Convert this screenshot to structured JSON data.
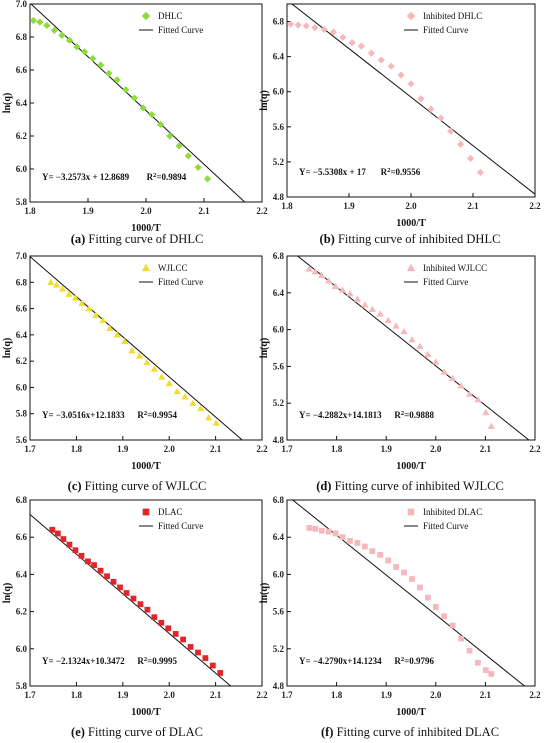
{
  "chart_data": [
    {
      "type": "scatter",
      "caption_letter": "(a)",
      "caption_text": "Fitting curve of DHLC",
      "xlabel": "1000/T",
      "ylabel": "ln(q)",
      "xlim": [
        1.8,
        2.2
      ],
      "ylim": [
        5.8,
        7.0
      ],
      "xticks": [
        "1.8",
        "1.9",
        "2.0",
        "2.1",
        "2.2"
      ],
      "yticks": [
        "5.8",
        "6.0",
        "6.2",
        "6.4",
        "6.6",
        "6.8",
        "7.0"
      ],
      "marker": "diamond",
      "color": "#8ddc3c",
      "legend_position": "top-right",
      "series": [
        {
          "name": "DHLC",
          "x": [
            1.806,
            1.817,
            1.829,
            1.842,
            1.855,
            1.868,
            1.881,
            1.894,
            1.908,
            1.922,
            1.936,
            1.95,
            1.965,
            1.98,
            1.995,
            2.01,
            2.025,
            2.041,
            2.057,
            2.073,
            2.09,
            2.106
          ],
          "y": [
            6.9,
            6.89,
            6.87,
            6.84,
            6.81,
            6.78,
            6.74,
            6.71,
            6.67,
            6.63,
            6.58,
            6.54,
            6.48,
            6.43,
            6.37,
            6.33,
            6.27,
            6.2,
            6.14,
            6.08,
            6.01,
            5.94
          ]
        },
        {
          "name": "Fitted Curve",
          "line": true,
          "slope": -3.2573,
          "intercept": 12.8689
        }
      ],
      "equation": "Y= −3.2573x + 12.8689",
      "r2_value": "=0.9894"
    },
    {
      "type": "scatter",
      "caption_letter": "(b)",
      "caption_text": "Fitting curve of inhibited DHLC",
      "xlabel": "1000/T",
      "ylabel": "ln(q)",
      "xlim": [
        1.8,
        2.2
      ],
      "ylim": [
        4.8,
        7.0
      ],
      "xticks": [
        "1.8",
        "1.9",
        "2.0",
        "2.1",
        "2.2"
      ],
      "yticks": [
        "4.8",
        "5.2",
        "5.6",
        "6.0",
        "6.4",
        "6.8"
      ],
      "marker": "diamond",
      "color": "#f6b8bb",
      "legend_position": "top-right",
      "series": [
        {
          "name": "Inhibited DHLC",
          "x": [
            1.806,
            1.818,
            1.831,
            1.845,
            1.86,
            1.875,
            1.89,
            1.905,
            1.92,
            1.936,
            1.952,
            1.968,
            1.984,
            2.0,
            2.016,
            2.032,
            2.048,
            2.064,
            2.08,
            2.096,
            2.112
          ],
          "y": [
            6.77,
            6.76,
            6.75,
            6.73,
            6.71,
            6.68,
            6.62,
            6.56,
            6.52,
            6.44,
            6.36,
            6.29,
            6.19,
            6.09,
            5.92,
            5.8,
            5.7,
            5.55,
            5.4,
            5.24,
            5.08
          ]
        },
        {
          "name": "Fitted Curve",
          "line": true,
          "slope": -5.5308,
          "intercept": 17.0
        }
      ],
      "equation": "Y= −5.5308x + 17",
      "r2_value": "=0.9556"
    },
    {
      "type": "scatter",
      "caption_letter": "(c)",
      "caption_text": "Fitting curve of WJLCC",
      "xlabel": "1000/T",
      "ylabel": "ln(q)",
      "xlim": [
        1.7,
        2.2
      ],
      "ylim": [
        5.6,
        7.0
      ],
      "xticks": [
        "1.7",
        "1.8",
        "1.9",
        "2.0",
        "2.1",
        "2.2"
      ],
      "yticks": [
        "5.6",
        "5.8",
        "6.0",
        "6.2",
        "6.4",
        "6.6",
        "6.8",
        "7.0"
      ],
      "marker": "triangle",
      "color": "#f2dc31",
      "legend_position": "top-right",
      "series": [
        {
          "name": "WJLCC",
          "x": [
            1.745,
            1.757,
            1.77,
            1.784,
            1.798,
            1.812,
            1.827,
            1.842,
            1.857,
            1.872,
            1.888,
            1.904,
            1.92,
            1.936,
            1.952,
            1.968,
            1.984,
            2.0,
            2.017,
            2.034,
            2.051,
            2.068,
            2.085,
            2.101
          ],
          "y": [
            6.8,
            6.78,
            6.75,
            6.71,
            6.68,
            6.64,
            6.6,
            6.55,
            6.51,
            6.45,
            6.4,
            6.35,
            6.28,
            6.24,
            6.19,
            6.14,
            6.08,
            6.03,
            5.97,
            5.93,
            5.88,
            5.84,
            5.77,
            5.73
          ]
        },
        {
          "name": "Fitted Curve",
          "line": true,
          "slope": -3.0516,
          "intercept": 12.1833
        }
      ],
      "equation": "Y= −3.0516x+12.1833",
      "r2_value": "=0.9954"
    },
    {
      "type": "scatter",
      "caption_letter": "(d)",
      "caption_text": "Fitting curve of inhibited WJLCC",
      "xlabel": "1000/T",
      "ylabel": "ln(q)",
      "xlim": [
        1.7,
        2.2
      ],
      "ylim": [
        4.8,
        6.8
      ],
      "xticks": [
        "1.7",
        "1.8",
        "1.9",
        "2.0",
        "2.1",
        "2.2"
      ],
      "yticks": [
        "4.8",
        "5.2",
        "5.6",
        "6.0",
        "6.4",
        "6.8"
      ],
      "marker": "triangle",
      "color": "#f6b8bb",
      "legend_position": "top-right",
      "series": [
        {
          "name": "Inhibited WJLCC",
          "x": [
            1.745,
            1.757,
            1.77,
            1.784,
            1.798,
            1.812,
            1.827,
            1.842,
            1.857,
            1.872,
            1.888,
            1.904,
            1.92,
            1.936,
            1.952,
            1.968,
            1.984,
            2.0,
            2.017,
            2.034,
            2.051,
            2.068,
            2.085,
            2.101,
            2.112
          ],
          "y": [
            6.66,
            6.63,
            6.59,
            6.53,
            6.47,
            6.43,
            6.39,
            6.33,
            6.27,
            6.22,
            6.17,
            6.1,
            6.04,
            5.98,
            5.89,
            5.82,
            5.73,
            5.65,
            5.54,
            5.47,
            5.39,
            5.3,
            5.24,
            5.1,
            4.95
          ]
        },
        {
          "name": "Fitted Curve",
          "line": true,
          "slope": -4.2882,
          "intercept": 14.1813
        }
      ],
      "equation": "Y= −4.2882x+14.1813",
      "r2_value": "=0.9888"
    },
    {
      "type": "scatter",
      "caption_letter": "(e)",
      "caption_text": "Fitting curve of DLAC",
      "xlabel": "1000/T",
      "ylabel": "ln(q)",
      "xlim": [
        1.7,
        2.2
      ],
      "ylim": [
        5.8,
        6.8
      ],
      "xticks": [
        "1.7",
        "1.8",
        "1.9",
        "2.0",
        "2.1",
        "2.2"
      ],
      "yticks": [
        "5.8",
        "6.0",
        "6.2",
        "6.4",
        "6.6",
        "6.8"
      ],
      "marker": "square",
      "color": "#e0262a",
      "legend_position": "top-right",
      "series": [
        {
          "name": "DLAC",
          "x": [
            1.748,
            1.76,
            1.772,
            1.785,
            1.798,
            1.811,
            1.825,
            1.838,
            1.852,
            1.866,
            1.88,
            1.894,
            1.908,
            1.923,
            1.938,
            1.953,
            1.968,
            1.983,
            1.998,
            2.014,
            2.03,
            2.046,
            2.062,
            2.078,
            2.094,
            2.11
          ],
          "y": [
            6.64,
            6.62,
            6.59,
            6.56,
            6.53,
            6.5,
            6.47,
            6.45,
            6.42,
            6.39,
            6.36,
            6.33,
            6.3,
            6.27,
            6.24,
            6.21,
            6.17,
            6.14,
            6.11,
            6.08,
            6.05,
            6.01,
            5.98,
            5.95,
            5.91,
            5.87
          ]
        },
        {
          "name": "Fitted Curve",
          "line": true,
          "slope": -2.1324,
          "intercept": 10.3472
        }
      ],
      "equation": "Y= −2.1324x+10.3472",
      "r2_value": "=0.9995"
    },
    {
      "type": "scatter",
      "caption_letter": "(f)",
      "caption_text": "Fitting curve of inhibited DLAC",
      "xlabel": "1000/T",
      "ylabel": "ln(q)",
      "xlim": [
        1.7,
        2.2
      ],
      "ylim": [
        4.8,
        6.8
      ],
      "xticks": [
        "1.7",
        "1.8",
        "1.9",
        "2.0",
        "2.1",
        "2.2"
      ],
      "yticks": [
        "4.8",
        "5.2",
        "5.6",
        "6.0",
        "6.4",
        "6.8"
      ],
      "marker": "square",
      "color": "#f6b8bb",
      "legend_position": "top-right",
      "series": [
        {
          "name": "Inhibited DLAC",
          "x": [
            1.745,
            1.757,
            1.77,
            1.784,
            1.798,
            1.812,
            1.827,
            1.842,
            1.857,
            1.872,
            1.888,
            1.904,
            1.92,
            1.936,
            1.952,
            1.968,
            1.984,
            2.0,
            2.017,
            2.034,
            2.051,
            2.068,
            2.085,
            2.101,
            2.112
          ],
          "y": [
            6.5,
            6.49,
            6.47,
            6.46,
            6.44,
            6.4,
            6.36,
            6.34,
            6.3,
            6.25,
            6.21,
            6.15,
            6.08,
            6.02,
            5.95,
            5.86,
            5.75,
            5.65,
            5.55,
            5.45,
            5.31,
            5.18,
            5.05,
            4.97,
            4.93
          ]
        },
        {
          "name": "Fitted Curve",
          "line": true,
          "slope": -4.279,
          "intercept": 14.1234
        }
      ],
      "equation": "Y= −4.2790x+14.1234",
      "r2_value": "=0.9796"
    }
  ]
}
